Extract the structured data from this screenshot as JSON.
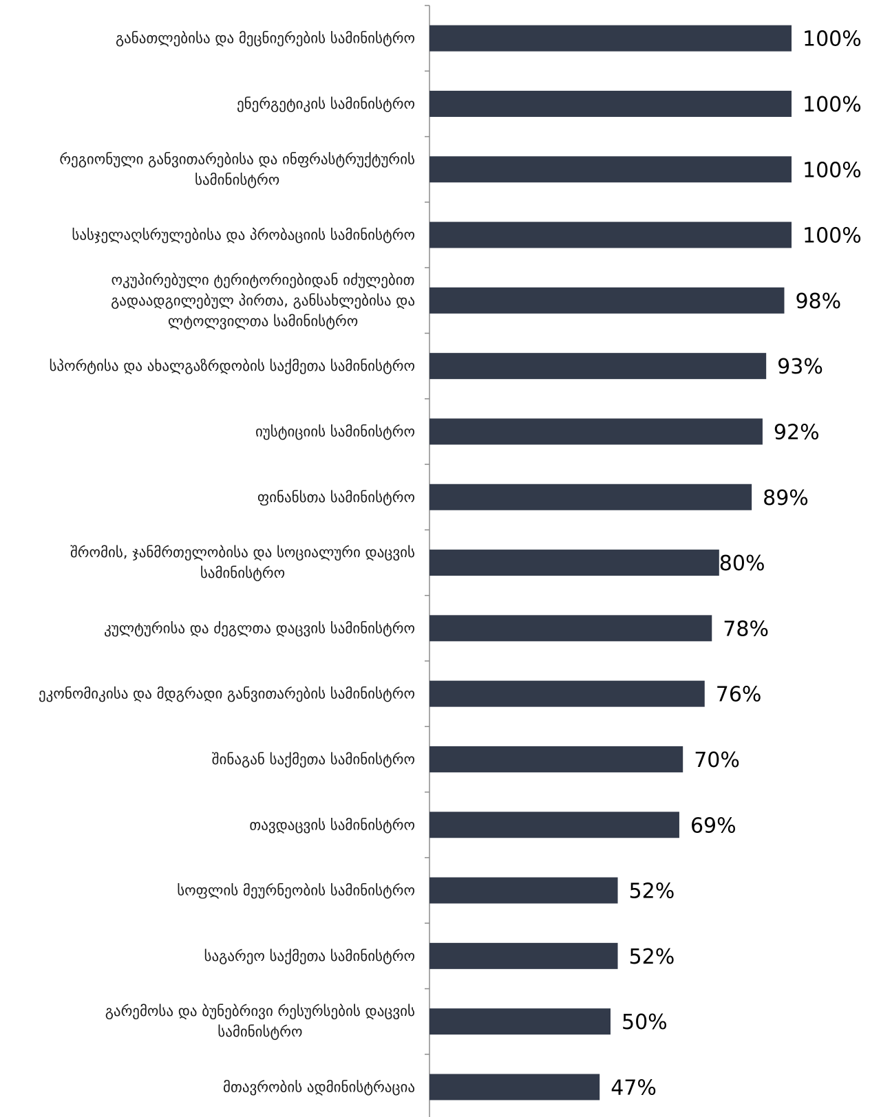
{
  "chart_data": {
    "type": "bar",
    "orientation": "horizontal",
    "categories": [
      "განათლებისა და მეცნიერების სამინისტრო",
      "ენერგეტიკის სამინისტრო",
      "რეგიონული განვითარებისა და ინფრასტრუქტურის სამინისტრო",
      "სასჯელაღსრულებისა და პრობაციის სამინისტრო",
      "ოკუპირებული ტერიტორიებიდან იძულებით გადაადგილებულ პირთა, განსახლებისა და ლტოლვილთა სამინისტრო",
      "სპორტისა და ახალგაზრდობის საქმეთა სამინისტრო",
      "იუსტიციის სამინისტრო",
      "ფინანსთა სამინისტრო",
      "შრომის, ჯანმრთელობისა და სოციალური დაცვის სამინისტრო",
      "კულტურისა და ძეგლთა დაცვის სამინისტრო",
      "ეკონომიკისა და მდგრადი განვითარების სამინისტრო",
      "შინაგან საქმეთა სამინისტრო",
      "თავდაცვის სამინისტრო",
      "სოფლის მეურნეობის სამინისტრო",
      "საგარეო საქმეთა სამინისტრო",
      "გარემოსა და ბუნებრივი რესურსების დაცვის სამინისტრო",
      "მთავრობის ადმინისტრაცია"
    ],
    "label_lines": [
      [
        "განათლებისა და მეცნიერების სამინისტრო"
      ],
      [
        "ენერგეტიკის სამინისტრო"
      ],
      [
        "რეგიონული განვითარებისა და ინფრასტრუქტურის",
        "სამინისტრო"
      ],
      [
        "სასჯელაღსრულებისა და პრობაციის სამინისტრო"
      ],
      [
        "ოკუპირებული ტერიტორიებიდან იძულებით",
        "გადაადგილებულ პირთა, განსახლებისა და",
        "ლტოლვილთა სამინისტრო"
      ],
      [
        "სპორტისა და ახალგაზრდობის საქმეთა სამინისტრო"
      ],
      [
        "იუსტიციის სამინისტრო"
      ],
      [
        "ფინანსთა სამინისტრო"
      ],
      [
        "შრომის, ჯანმრთელობისა და სოციალური დაცვის",
        "სამინისტრო"
      ],
      [
        "კულტურისა და ძეგლთა დაცვის სამინისტრო"
      ],
      [
        "ეკონომიკისა და მდგრადი განვითარების სამინისტრო"
      ],
      [
        "შინაგან საქმეთა სამინისტრო"
      ],
      [
        "თავდაცვის სამინისტრო"
      ],
      [
        "სოფლის მეურნეობის სამინისტრო"
      ],
      [
        "საგარეო საქმეთა სამინისტრო"
      ],
      [
        "გარემოსა და ბუნებრივი რესურსების დაცვის",
        "სამინისტრო"
      ],
      [
        "მთავრობის ადმინისტრაცია"
      ]
    ],
    "values": [
      100,
      100,
      100,
      100,
      98,
      93,
      92,
      89,
      80,
      78,
      76,
      70,
      69,
      52,
      52,
      50,
      47
    ],
    "value_labels": [
      "100%",
      "100%",
      "100%",
      "100%",
      "98%",
      "93%",
      "92%",
      "89%",
      "80%",
      "78%",
      "76%",
      "70%",
      "69%",
      "52%",
      "52%",
      "50%",
      "47%"
    ],
    "value_unit": "%",
    "xlim": [
      0,
      100
    ],
    "bar_color": "#323a4a",
    "axis_color": "#8c8c8c",
    "grid": false,
    "legend": "none",
    "title": "",
    "xlabel": "",
    "ylabel": ""
  }
}
